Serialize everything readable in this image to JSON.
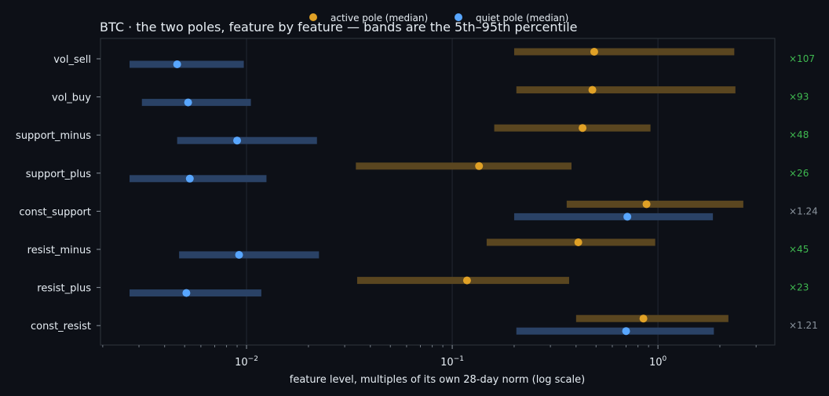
{
  "chart_data": {
    "type": "dot-range",
    "title": "BTC · the two poles, feature by feature — bands are the 5th–95th percentile",
    "xlabel": "feature level, multiples of its own 28-day norm (log scale)",
    "ylabel": "",
    "x_scale": "log",
    "xlim": [
      0.00195,
      3.7
    ],
    "x_ticks": [
      {
        "value": 0.01,
        "base": "10",
        "exp": "−2"
      },
      {
        "value": 0.1,
        "base": "10",
        "exp": "−1"
      },
      {
        "value": 1,
        "base": "10",
        "exp": "0"
      }
    ],
    "grid": true,
    "legend_position": "top-center",
    "legend": [
      {
        "label": "active pole (median)",
        "color": "#e0a126"
      },
      {
        "label": "quiet pole (median)",
        "color": "#58a6ff"
      }
    ],
    "colors": {
      "active_band": "#5a4620",
      "quiet_band": "#2a4266",
      "ratio_significant": "#3fb950",
      "ratio_neutral": "#8b949e"
    },
    "features": [
      {
        "name": "vol_sell",
        "active": {
          "median": 0.49,
          "p5": 0.2,
          "p95": 2.35
        },
        "quiet": {
          "median": 0.0046,
          "p5": 0.0027,
          "p95": 0.0097
        },
        "ratio": "×107",
        "significant": true
      },
      {
        "name": "vol_buy",
        "active": {
          "median": 0.48,
          "p5": 0.205,
          "p95": 2.38
        },
        "quiet": {
          "median": 0.0052,
          "p5": 0.0031,
          "p95": 0.0105
        },
        "ratio": "×93",
        "significant": true
      },
      {
        "name": "support_minus",
        "active": {
          "median": 0.43,
          "p5": 0.16,
          "p95": 0.92
        },
        "quiet": {
          "median": 0.009,
          "p5": 0.0046,
          "p95": 0.022
        },
        "ratio": "×48",
        "significant": true
      },
      {
        "name": "support_plus",
        "active": {
          "median": 0.135,
          "p5": 0.034,
          "p95": 0.38
        },
        "quiet": {
          "median": 0.0053,
          "p5": 0.0027,
          "p95": 0.0125
        },
        "ratio": "×26",
        "significant": true
      },
      {
        "name": "const_support",
        "active": {
          "median": 0.88,
          "p5": 0.36,
          "p95": 2.6
        },
        "quiet": {
          "median": 0.71,
          "p5": 0.2,
          "p95": 1.85
        },
        "ratio": "×1.24",
        "significant": false
      },
      {
        "name": "resist_minus",
        "active": {
          "median": 0.41,
          "p5": 0.147,
          "p95": 0.97
        },
        "quiet": {
          "median": 0.0092,
          "p5": 0.0047,
          "p95": 0.0225
        },
        "ratio": "×45",
        "significant": true
      },
      {
        "name": "resist_plus",
        "active": {
          "median": 0.118,
          "p5": 0.0345,
          "p95": 0.37
        },
        "quiet": {
          "median": 0.0051,
          "p5": 0.0027,
          "p95": 0.0118
        },
        "ratio": "×23",
        "significant": true
      },
      {
        "name": "const_resist",
        "active": {
          "median": 0.85,
          "p5": 0.4,
          "p95": 2.2
        },
        "quiet": {
          "median": 0.7,
          "p5": 0.205,
          "p95": 1.87
        },
        "ratio": "×1.21",
        "significant": false
      }
    ]
  }
}
